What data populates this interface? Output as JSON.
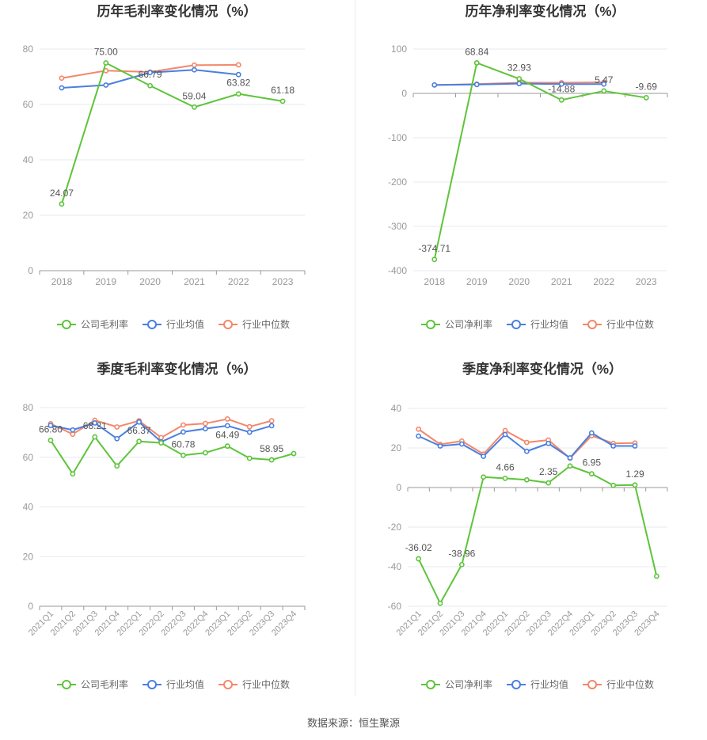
{
  "colors": {
    "company": "#5ec43a",
    "avg": "#4a7fe0",
    "median": "#f3876a",
    "grid": "#e6e9f0",
    "axis": "#999999",
    "tick": "#999999",
    "title": "#333333",
    "label": "#555555"
  },
  "source_text": "数据来源：恒生聚源",
  "chart_data": [
    {
      "id": "annual-gross",
      "type": "line",
      "title": "历年毛利率变化情况（%）",
      "categories": [
        "2018",
        "2019",
        "2020",
        "2021",
        "2022",
        "2023"
      ],
      "ylim": [
        0,
        80
      ],
      "yticks": [
        0,
        20,
        40,
        60,
        80
      ],
      "grid": true,
      "legend_position": "bottom",
      "series": [
        {
          "name": "公司毛利率",
          "key": "company",
          "values": [
            24.07,
            75.0,
            66.79,
            59.04,
            63.82,
            61.18
          ]
        },
        {
          "name": "行业均值",
          "key": "avg",
          "values": [
            66.0,
            67.0,
            71.5,
            72.5,
            70.8,
            null
          ]
        },
        {
          "name": "行业中位数",
          "key": "median",
          "values": [
            69.5,
            72.2,
            71.7,
            74.2,
            74.3,
            null
          ]
        }
      ],
      "data_labels": [
        {
          "index": 0,
          "text": "24.07"
        },
        {
          "index": 1,
          "text": "75.00"
        },
        {
          "index": 2,
          "text": "66.79"
        },
        {
          "index": 3,
          "text": "59.04"
        },
        {
          "index": 4,
          "text": "63.82"
        },
        {
          "index": 5,
          "text": "61.18"
        }
      ]
    },
    {
      "id": "annual-net",
      "type": "line",
      "title": "历年净利率变化情况（%）",
      "categories": [
        "2018",
        "2019",
        "2020",
        "2021",
        "2022",
        "2023"
      ],
      "ylim": [
        -400,
        100
      ],
      "yticks": [
        -400,
        -300,
        -200,
        -100,
        0,
        100
      ],
      "grid": true,
      "legend_position": "bottom",
      "series": [
        {
          "name": "公司净利率",
          "key": "company",
          "values": [
            -374.71,
            68.84,
            32.93,
            -14.88,
            5.47,
            -9.69
          ]
        },
        {
          "name": "行业均值",
          "key": "avg",
          "values": [
            19,
            20,
            22,
            21,
            21,
            null
          ]
        },
        {
          "name": "行业中位数",
          "key": "median",
          "values": [
            19,
            21,
            24,
            24,
            25,
            null
          ]
        }
      ],
      "data_labels": [
        {
          "index": 0,
          "text": "-374.71"
        },
        {
          "index": 1,
          "text": "68.84"
        },
        {
          "index": 2,
          "text": "32.93"
        },
        {
          "index": 3,
          "text": "-14.88"
        },
        {
          "index": 4,
          "text": "5.47"
        },
        {
          "index": 5,
          "text": "-9.69"
        }
      ]
    },
    {
      "id": "quarterly-gross",
      "type": "line",
      "title": "季度毛利率变化情况（%）",
      "categories": [
        "2021Q1",
        "2021Q2",
        "2021Q3",
        "2021Q4",
        "2022Q1",
        "2022Q2",
        "2022Q3",
        "2022Q4",
        "2023Q1",
        "2023Q2",
        "2023Q3",
        "2023Q4"
      ],
      "ylim": [
        0,
        80
      ],
      "yticks": [
        0,
        20,
        40,
        60,
        80
      ],
      "grid": true,
      "legend_position": "bottom",
      "series": [
        {
          "name": "公司毛利率",
          "key": "company",
          "values": [
            66.8,
            53.3,
            68.21,
            56.5,
            66.37,
            65.8,
            60.78,
            61.8,
            64.49,
            59.6,
            58.95,
            61.5
          ]
        },
        {
          "name": "行业均值",
          "key": "avg",
          "values": [
            72.8,
            71.0,
            73.8,
            67.5,
            74.2,
            66.2,
            70.2,
            71.5,
            72.7,
            70.1,
            72.7,
            null
          ]
        },
        {
          "name": "行业中位数",
          "key": "median",
          "values": [
            73.5,
            69.3,
            74.9,
            72.2,
            74.7,
            67.9,
            73.0,
            73.6,
            75.4,
            72.3,
            74.7,
            null
          ]
        }
      ],
      "data_labels": [
        {
          "index": 0,
          "text": "66.80"
        },
        {
          "index": 2,
          "text": "68.21"
        },
        {
          "index": 4,
          "text": "66.37"
        },
        {
          "index": 6,
          "text": "60.78"
        },
        {
          "index": 8,
          "text": "64.49"
        },
        {
          "index": 10,
          "text": "58.95"
        }
      ]
    },
    {
      "id": "quarterly-net",
      "type": "line",
      "title": "季度净利率变化情况（%）",
      "categories": [
        "2021Q1",
        "2021Q2",
        "2021Q3",
        "2021Q4",
        "2022Q1",
        "2022Q2",
        "2022Q3",
        "2022Q4",
        "2023Q1",
        "2023Q2",
        "2023Q3",
        "2023Q4"
      ],
      "ylim": [
        -60,
        40
      ],
      "yticks": [
        -60,
        -40,
        -20,
        0,
        20,
        40
      ],
      "grid": true,
      "legend_position": "bottom",
      "series": [
        {
          "name": "公司净利率",
          "key": "company",
          "values": [
            -36.02,
            -58.5,
            -38.96,
            5.3,
            4.66,
            3.9,
            2.35,
            10.9,
            6.95,
            1.1,
            1.29,
            -44.8
          ]
        },
        {
          "name": "行业均值",
          "key": "avg",
          "values": [
            26.0,
            21.0,
            22.0,
            15.8,
            26.8,
            18.3,
            22.3,
            15.0,
            27.6,
            21.0,
            21.0,
            null
          ]
        },
        {
          "name": "行业中位数",
          "key": "median",
          "values": [
            29.5,
            21.8,
            23.5,
            16.9,
            28.8,
            22.8,
            24.0,
            14.8,
            26.2,
            22.3,
            22.5,
            null
          ]
        }
      ],
      "data_labels": [
        {
          "index": 0,
          "text": "-36.02"
        },
        {
          "index": 2,
          "text": "-38.96"
        },
        {
          "index": 4,
          "text": "4.66"
        },
        {
          "index": 6,
          "text": "2.35"
        },
        {
          "index": 8,
          "text": "6.95"
        },
        {
          "index": 10,
          "text": "1.29"
        }
      ]
    }
  ]
}
